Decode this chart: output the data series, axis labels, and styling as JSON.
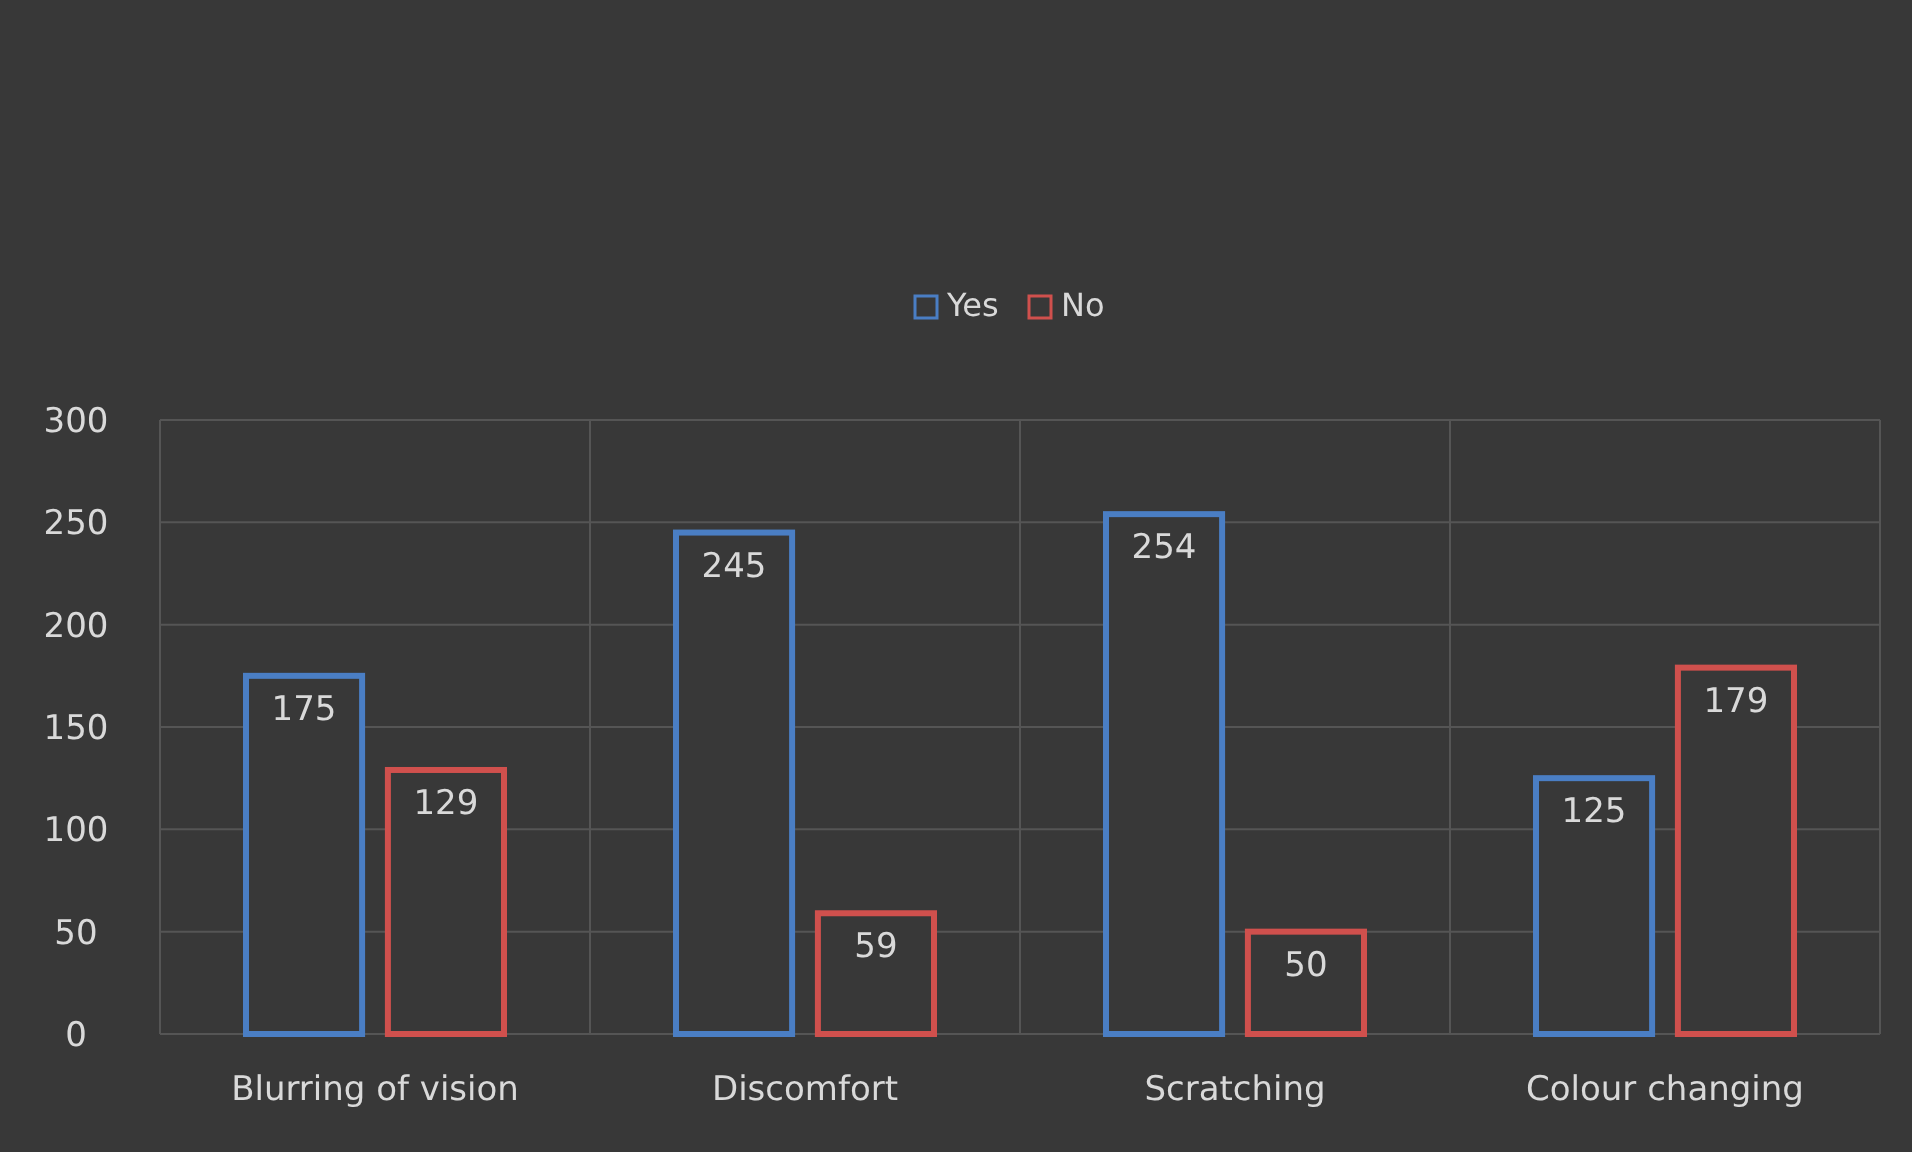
{
  "chart_data": {
    "type": "bar",
    "categories": [
      "Blurring of vision",
      "Discomfort",
      "Scratching",
      "Colour changing"
    ],
    "series": [
      {
        "name": "Yes",
        "color": "#4a7ec4",
        "values": [
          175,
          245,
          254,
          125
        ]
      },
      {
        "name": "No",
        "color": "#d0504d",
        "values": [
          129,
          59,
          50,
          179
        ]
      }
    ],
    "ylim": [
      0,
      300
    ],
    "yticks": [
      0,
      50,
      100,
      150,
      200,
      250,
      300
    ],
    "grid": true,
    "legend": "top",
    "data_labels": true
  }
}
